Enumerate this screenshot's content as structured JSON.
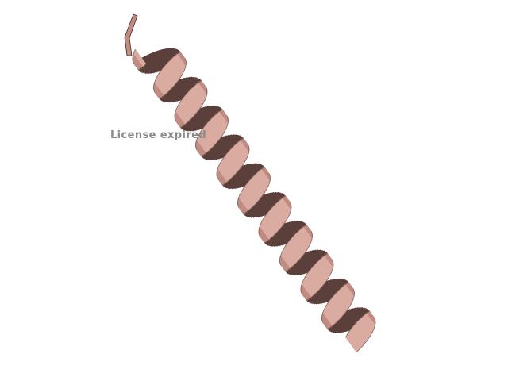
{
  "viewer": {
    "watermark_text": "License expired",
    "background_color": "#ffffff"
  },
  "structure": {
    "representation": "cartoon",
    "secondary_structure": "alpha-helix",
    "turns": 10,
    "colors": {
      "ribbon_light": "#d9aba1",
      "ribbon_mid": "#c08c82",
      "ribbon_shadow": "#5a3f3a",
      "ribbon_outline": "#3e2a26"
    }
  },
  "colors": {
    "watermark": "#8a8a8a"
  }
}
